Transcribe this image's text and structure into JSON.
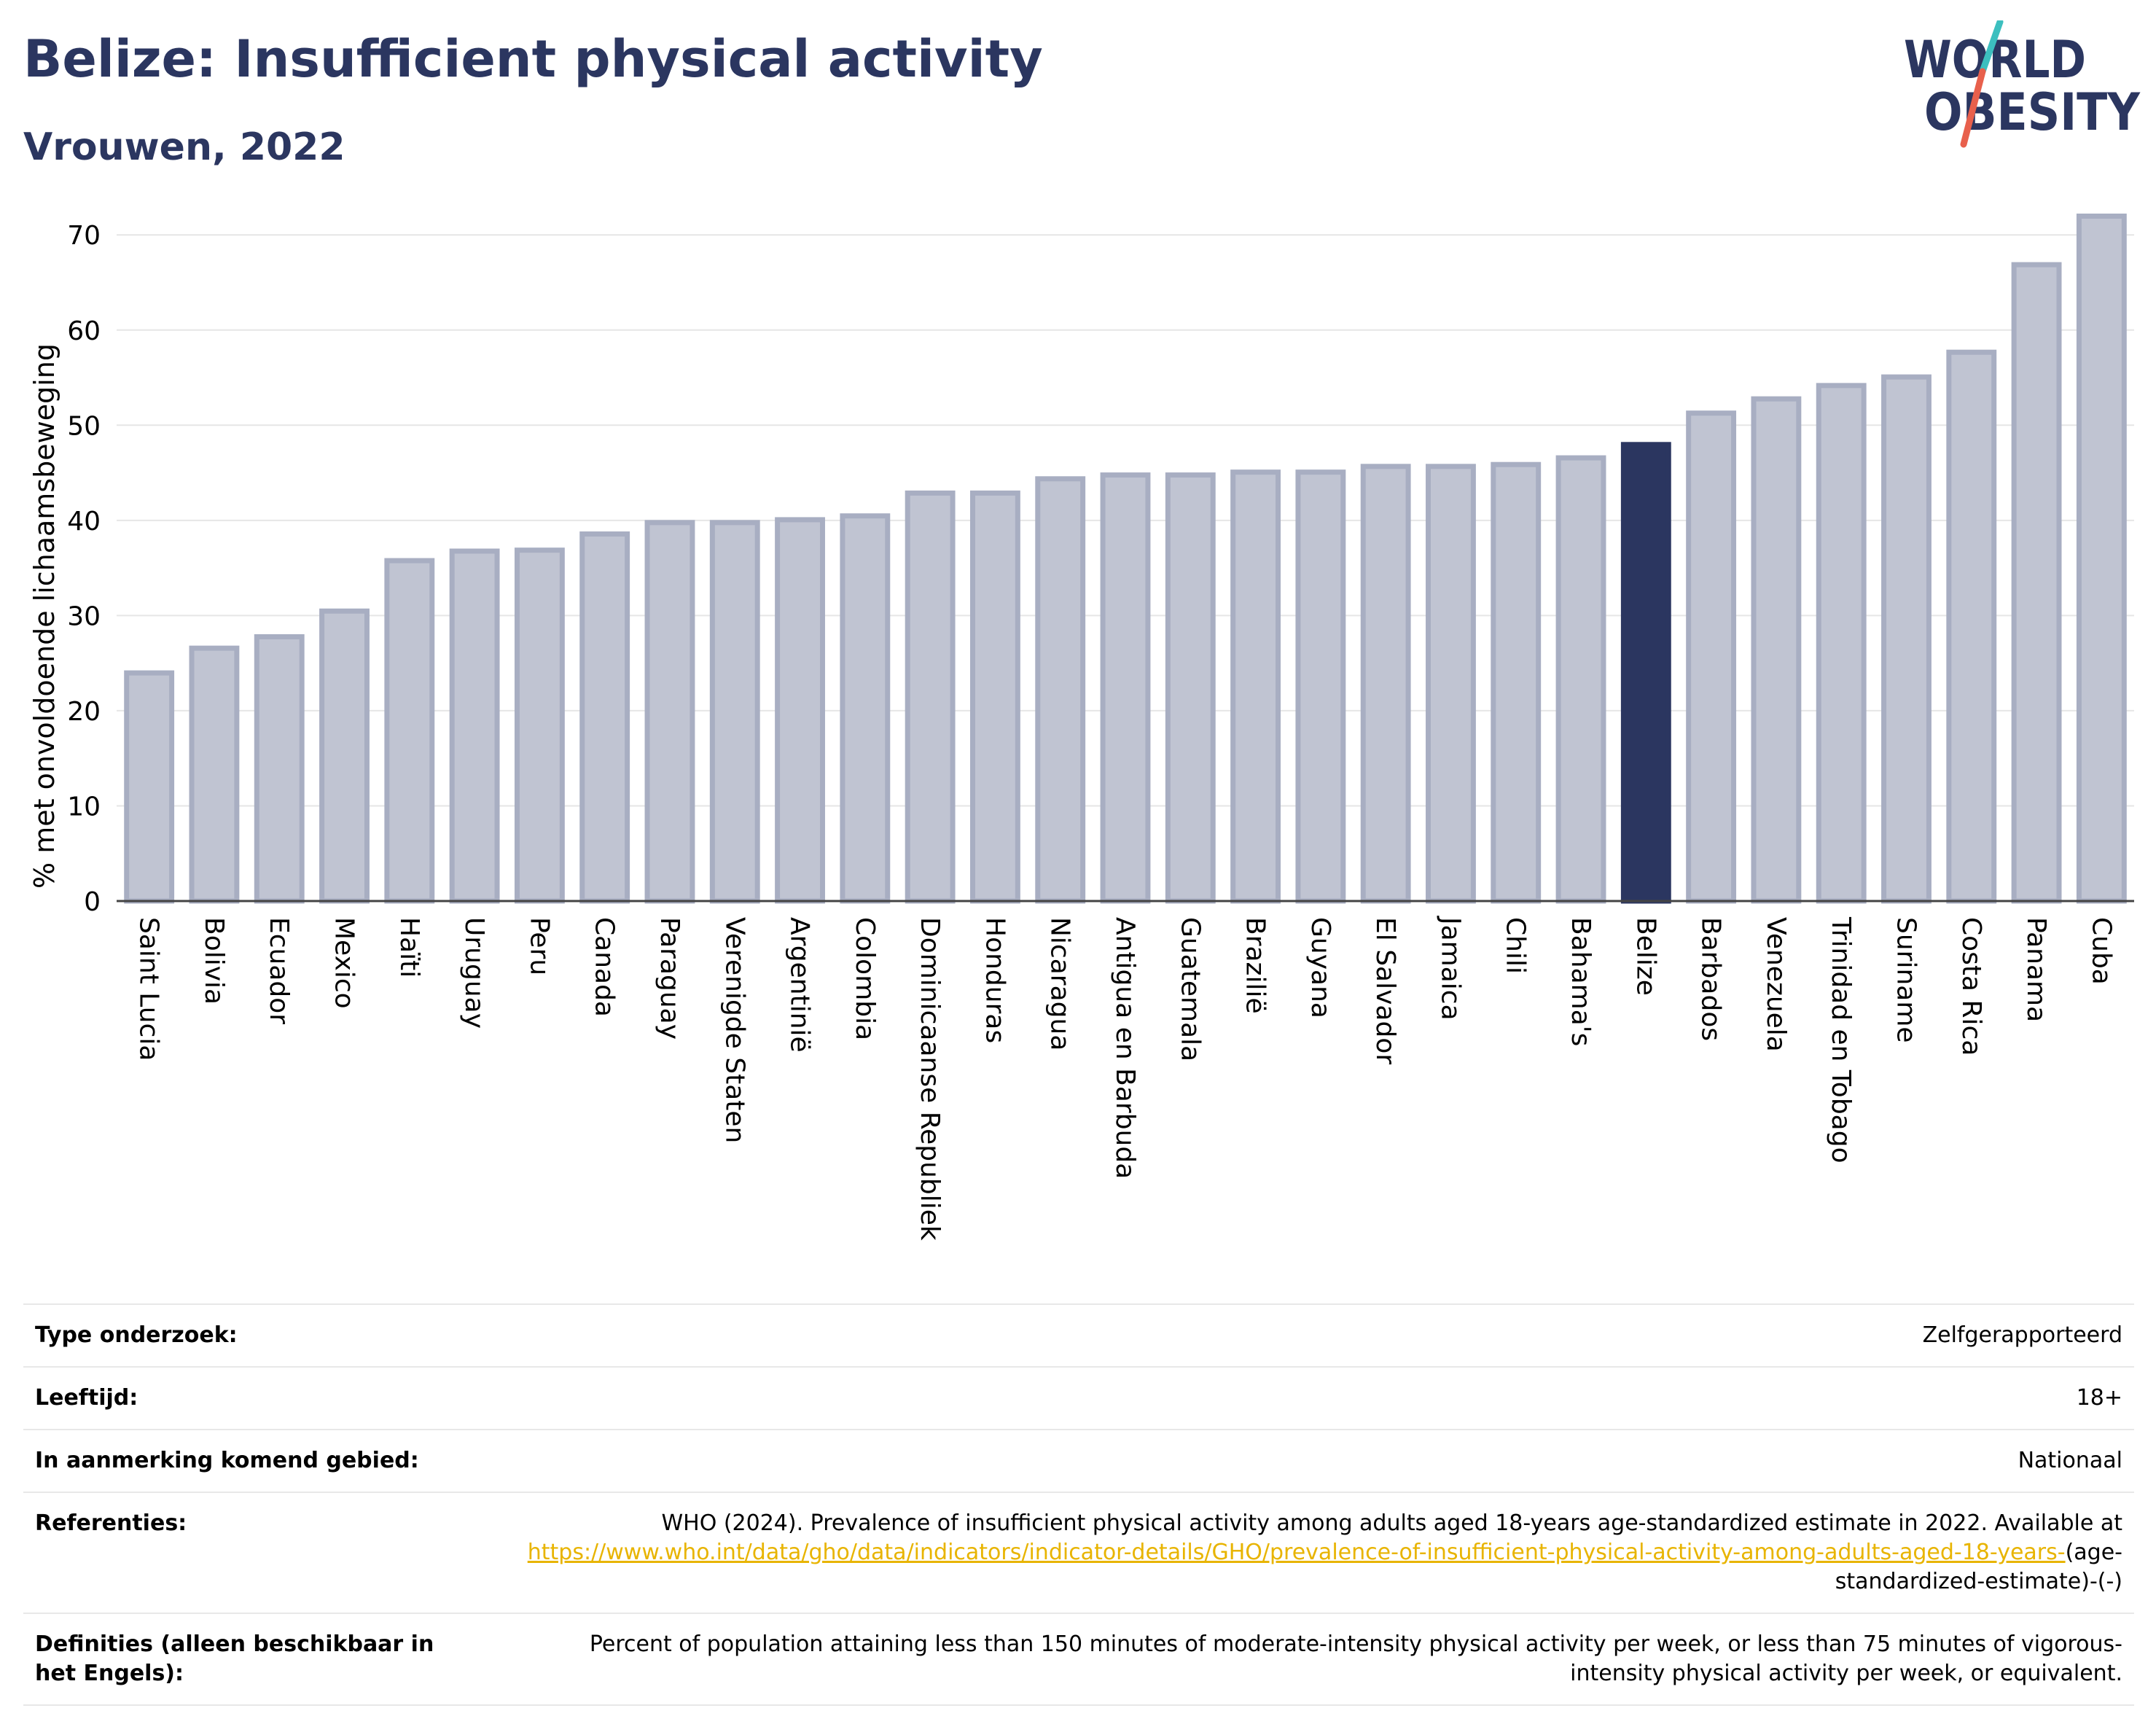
{
  "header": {
    "title": "Belize: Insufficient physical activity",
    "subtitle": "Vrouwen, 2022"
  },
  "logo": {
    "line1": "WORLD",
    "line2": "OBESITY",
    "text_color": "#2b3660",
    "slash_color_top": "#3cbfbf",
    "slash_color_bottom": "#e8604c"
  },
  "colors": {
    "bar": "#c0c4d2",
    "bar_border": "#a8aec2",
    "highlight": "#2b3660",
    "grid": "#e6e6e6",
    "axis": "#444444"
  },
  "chart_data": {
    "type": "bar",
    "title": "",
    "xlabel": "",
    "ylabel": "% met onvoldoende lichaamsbeweging",
    "ylim": [
      0,
      74
    ],
    "yticks": [
      0,
      10,
      20,
      30,
      40,
      50,
      60,
      70
    ],
    "grid": "horizontal",
    "highlight": "Belize",
    "categories": [
      "Saint Lucia",
      "Bolivia",
      "Ecuador",
      "Mexico",
      "Haïti",
      "Uruguay",
      "Peru",
      "Canada",
      "Paraguay",
      "Verenigde Staten",
      "Argentinië",
      "Colombia",
      "Dominicaanse Republiek",
      "Honduras",
      "Nicaragua",
      "Antigua en Barbuda",
      "Guatemala",
      "Brazilië",
      "Guyana",
      "El Salvador",
      "Jamaica",
      "Chili",
      "Bahama's",
      "Belize",
      "Barbados",
      "Venezuela",
      "Trinidad en Tobago",
      "Suriname",
      "Costa Rica",
      "Panama",
      "Cuba"
    ],
    "values": [
      24.2,
      26.8,
      28.0,
      30.7,
      36.0,
      37.0,
      37.1,
      38.8,
      40.0,
      40.0,
      40.3,
      40.7,
      43.1,
      43.1,
      44.6,
      45.0,
      45.0,
      45.3,
      45.3,
      45.9,
      45.9,
      46.1,
      46.8,
      48.2,
      51.5,
      53.0,
      54.4,
      55.3,
      57.9,
      67.1,
      72.2
    ]
  },
  "info": {
    "rows": [
      {
        "label": "Type onderzoek:",
        "value": "Zelfgerapporteerd"
      },
      {
        "label": "Leeftijd:",
        "value": "18+"
      },
      {
        "label": "In aanmerking komend gebied:",
        "value": "Nationaal"
      }
    ],
    "references": {
      "label": "Referenties:",
      "text": "WHO (2024). Prevalence of insufficient physical activity among adults aged 18-years age-standardized estimate in 2022. Available at",
      "link": "https://www.who.int/data/gho/data/indicators/indicator-details/GHO/prevalence-of-insufficient-physical-activity-among-adults-aged-18-years-",
      "suffix": "(age-standardized-estimate)-(-)"
    },
    "definitions": {
      "label": "Definities (alleen beschikbaar in het Engels):",
      "text": "Percent of population attaining less than 150 minutes of moderate-intensity physical activity per week, or less than 75 minutes of vigorous-intensity physical activity per week, or equivalent."
    }
  }
}
